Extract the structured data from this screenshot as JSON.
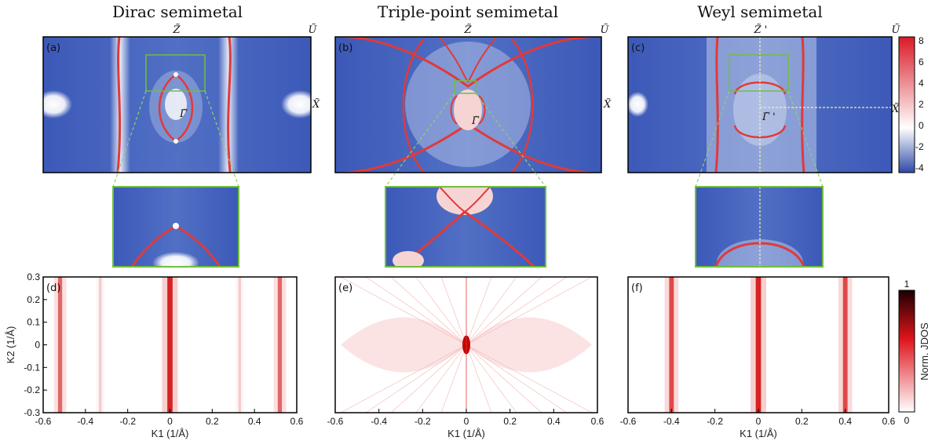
{
  "titles": [
    "Dirac semimetal",
    "Triple-point semimetal",
    "Weyl semimetal"
  ],
  "panel_labels": [
    "(a)",
    "(b)",
    "(c)",
    "(d)",
    "(e)",
    "(f)"
  ],
  "symbols": {
    "z": "Z̃",
    "u": "Ũ",
    "x": "X̃",
    "gamma": "Γ̃",
    "z_prime": "Z̃ '",
    "gamma_prime": "Γ̃ '"
  },
  "colorbar_top": {
    "ticks": [
      "8",
      "6",
      "4",
      "2",
      "0",
      "-2",
      "-4"
    ]
  },
  "colorbar_bottom": {
    "label": "Norm. JDOS",
    "max": "1",
    "min": "0"
  },
  "chart_data": [
    {
      "type": "heatmap",
      "panel": "(d)",
      "xlabel": "K1 (1/Å)",
      "ylabel": "K2 (1/Å)",
      "xticks": [
        "-0.6",
        "-0.4",
        "-0.2",
        "0",
        "0.2",
        "0.4",
        "0.6"
      ],
      "yticks": [
        "0.3",
        "0.2",
        "0.1",
        "0",
        "-0.1",
        "-0.2",
        "-0.3"
      ],
      "xlim": [
        -0.6,
        0.6
      ],
      "ylim": [
        -0.3,
        0.3
      ],
      "features": [
        {
          "k1": -0.52,
          "intensity": 0.65
        },
        {
          "k1": -0.33,
          "intensity": 0.2
        },
        {
          "k1": 0.0,
          "intensity": 1.0
        },
        {
          "k1": 0.33,
          "intensity": 0.2
        },
        {
          "k1": 0.52,
          "intensity": 0.65
        }
      ]
    },
    {
      "type": "heatmap",
      "panel": "(e)",
      "xlabel": "K1 (1/Å)",
      "xticks": [
        "-0.6",
        "-0.4",
        "-0.2",
        "0",
        "0.2",
        "0.4",
        "0.6"
      ],
      "xlim": [
        -0.6,
        0.6
      ],
      "ylim": [
        -0.3,
        0.3
      ],
      "features": [
        {
          "k1": 0.0,
          "k2": 0.0,
          "intensity": 1.0
        }
      ]
    },
    {
      "type": "heatmap",
      "panel": "(f)",
      "xlabel": "K1 (1/Å)",
      "xticks": [
        "-0.6",
        "-0.4",
        "-0.2",
        "0",
        "0.2",
        "0.4",
        "0.6"
      ],
      "xlim": [
        -0.6,
        0.6
      ],
      "ylim": [
        -0.3,
        0.3
      ],
      "features": [
        {
          "k1": -0.4,
          "intensity": 0.8
        },
        {
          "k1": 0.0,
          "intensity": 1.0
        },
        {
          "k1": 0.4,
          "intensity": 0.8
        }
      ]
    }
  ]
}
